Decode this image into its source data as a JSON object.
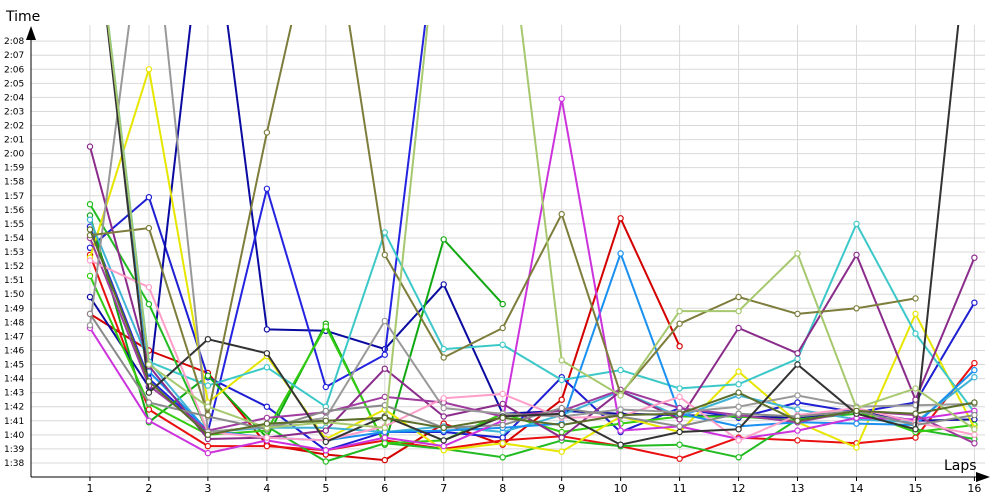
{
  "chart_data": {
    "type": "line",
    "xlabel": "Laps",
    "ylabel": "Time",
    "xlim": [
      0,
      16.4
    ],
    "ylim": [
      97.0,
      130.5
    ],
    "grid": true,
    "legend": "none",
    "x": [
      1,
      2,
      3,
      4,
      5,
      6,
      7,
      8,
      9,
      10,
      11,
      12,
      13,
      14,
      15,
      16
    ],
    "x_tick_labels": [
      "1",
      "2",
      "3",
      "4",
      "5",
      "6",
      "7",
      "8",
      "9",
      "10",
      "11",
      "12",
      "13",
      "14",
      "15",
      "16"
    ],
    "y_ticks": [
      98,
      99,
      100,
      101,
      102,
      103,
      104,
      105,
      106,
      107,
      108,
      109,
      110,
      111,
      112,
      113,
      114,
      115,
      116,
      117,
      118,
      119,
      120,
      121,
      122,
      123,
      124,
      125,
      126,
      127,
      128
    ],
    "y_tick_labels": [
      "1:38",
      "1:39",
      "1:40",
      "1:41",
      "1:42",
      "1:43",
      "1:44",
      "1:45",
      "1:46",
      "1:47",
      "1:48",
      "1:49",
      "1:50",
      "1:51",
      "1:52",
      "1:53",
      "1:54",
      "1:55",
      "1:56",
      "1:57",
      "1:58",
      "1:59",
      "2:00",
      "2:01",
      "2:02",
      "2:03",
      "2:04",
      "2:05",
      "2:06",
      "2:07",
      "2:08"
    ],
    "series": [
      {
        "color": "#d40000",
        "values": [
          108.6,
          106.0,
          104.4,
          99.3,
          98.6,
          98.2,
          100.8,
          99.3,
          102.5,
          115.4,
          106.3,
          null,
          null,
          null,
          null,
          null
        ]
      },
      {
        "color": "#e81010",
        "values": [
          112.8,
          101.8,
          99.2,
          99.2,
          98.9,
          99.6,
          99.0,
          99.6,
          99.9,
          99.2,
          98.3,
          99.8,
          99.6,
          99.4,
          99.8,
          105.1
        ]
      },
      {
        "color": "#1e1ed2",
        "values": [
          113.3,
          116.9,
          104.1,
          102.0,
          98.9,
          100.2,
          100.2,
          99.8,
          104.1,
          100.2,
          101.9,
          101.2,
          102.3,
          101.6,
          102.3,
          109.4
        ]
      },
      {
        "color": "#0a0aa0",
        "values": [
          109.8,
          103.4,
          140.0,
          107.5,
          107.4,
          106.1,
          110.7,
          101.5,
          101.7,
          101.5,
          101.4,
          101.3,
          101.2,
          101.7,
          101.0,
          101.1
        ]
      },
      {
        "color": "#2424e0",
        "values": [
          114.8,
          104.0,
          100.2,
          117.5,
          103.4,
          105.7,
          140.0,
          null,
          null,
          null,
          null,
          null,
          null,
          null,
          null,
          null
        ]
      },
      {
        "color": "#22bb22",
        "values": [
          116.4,
          109.3,
          100.2,
          100.6,
          98.1,
          99.4,
          99.0,
          98.4,
          99.6,
          99.2,
          99.3,
          98.4,
          101.1,
          101.5,
          100.4,
          99.7
        ]
      },
      {
        "color": "#12a812",
        "values": [
          115.6,
          100.9,
          104.2,
          99.8,
          107.9,
          99.3,
          113.9,
          109.3,
          null,
          null,
          null,
          null,
          null,
          null,
          null,
          null
        ]
      },
      {
        "color": "#33cc11",
        "values": [
          111.3,
          102.2,
          100.0,
          100.3,
          107.7,
          99.4,
          99.6,
          101.5,
          100.2,
          100.8,
          101.3,
          101.3,
          101.0,
          101.7,
          100.2,
          100.7
        ]
      },
      {
        "color": "#e6e600",
        "values": [
          112.6,
          126.0,
          102.3,
          105.6,
          99.7,
          101.8,
          98.9,
          99.4,
          98.8,
          101.3,
          100.2,
          104.5,
          100.9,
          99.1,
          108.6,
          100.5
        ]
      },
      {
        "color": "#41b4d6",
        "values": [
          115.3,
          105.2,
          100.2,
          100.5,
          100.5,
          100.2,
          100.6,
          100.2,
          101.4,
          103.1,
          101.3,
          102.8,
          101.8,
          101.1,
          100.9,
          104.1
        ]
      },
      {
        "color": "#3cc8c8",
        "values": [
          140.0,
          105.2,
          103.5,
          104.8,
          102.0,
          114.4,
          106.1,
          106.4,
          103.9,
          104.6,
          103.3,
          103.6,
          105.4,
          115.0,
          107.2,
          101.6
        ]
      },
      {
        "color": "#1a90f0",
        "values": [
          140.0,
          104.5,
          100.3,
          99.8,
          99.6,
          100.2,
          100.3,
          100.5,
          100.8,
          112.9,
          101.5,
          100.6,
          100.9,
          100.8,
          100.7,
          104.6
        ]
      },
      {
        "color": "#cc33dd",
        "values": [
          107.6,
          101.0,
          98.7,
          99.6,
          98.9,
          99.8,
          99.2,
          101.0,
          123.9,
          100.3,
          100.6,
          99.7,
          100.3,
          101.2,
          101.1,
          101.7
        ]
      },
      {
        "color": "#8b2c8b",
        "values": [
          120.5,
          104.9,
          99.7,
          99.8,
          100.3,
          104.7,
          101.3,
          102.2,
          99.8,
          103.1,
          101.1,
          107.6,
          105.8,
          112.8,
          102.5,
          112.6
        ]
      },
      {
        "color": "#a03ca0",
        "values": [
          114.0,
          103.5,
          100.3,
          101.2,
          101.6,
          102.7,
          102.3,
          101.3,
          101.7,
          103.2,
          101.9,
          101.4,
          100.9,
          101.7,
          101.4,
          99.4
        ]
      },
      {
        "color": "#ff9ec8",
        "values": [
          112.4,
          110.5,
          100.2,
          99.8,
          99.6,
          100.6,
          102.6,
          102.9,
          101.2,
          101.3,
          102.7,
          99.6,
          101.4,
          101.9,
          100.9,
          100.0
        ]
      },
      {
        "color": "#999999",
        "values": [
          107.8,
          140.0,
          100.2,
          100.6,
          101.2,
          108.1,
          101.9,
          101.5,
          101.3,
          101.8,
          101.6,
          102.0,
          102.8,
          102.0,
          102.1,
          102.2
        ]
      },
      {
        "color": "#8a8a8a",
        "values": [
          108.6,
          102.3,
          101.3,
          100.4,
          101.7,
          102.1,
          100.5,
          100.7,
          101.9,
          101.3,
          100.6,
          101.5,
          101.3,
          101.7,
          100.7,
          101.4
        ]
      },
      {
        "color": "#333333",
        "values": [
          140.0,
          103.0,
          106.8,
          105.8,
          99.5,
          101.3,
          99.6,
          101.3,
          101.5,
          99.3,
          100.2,
          100.4,
          105.0,
          101.5,
          100.4,
          140.0
        ]
      },
      {
        "color": "#7d7d3c",
        "values": [
          114.2,
          114.7,
          101.4,
          121.5,
          140.0,
          112.8,
          105.5,
          107.6,
          115.7,
          102.9,
          107.9,
          109.8,
          108.6,
          109.0,
          109.7,
          null
        ]
      },
      {
        "color": "#a6c86e",
        "values": [
          140.0,
          105.0,
          102.0,
          100.5,
          100.9,
          100.5,
          140.0,
          140.0,
          105.3,
          102.8,
          108.8,
          108.8,
          112.9,
          101.9,
          103.3,
          100.4
        ]
      },
      {
        "color": "#5a6e2a",
        "values": [
          114.6,
          103.8,
          100.0,
          100.8,
          101.0,
          101.2,
          100.5,
          101.2,
          100.7,
          101.4,
          101.5,
          103.0,
          101.0,
          101.7,
          101.5,
          102.3
        ]
      }
    ]
  }
}
